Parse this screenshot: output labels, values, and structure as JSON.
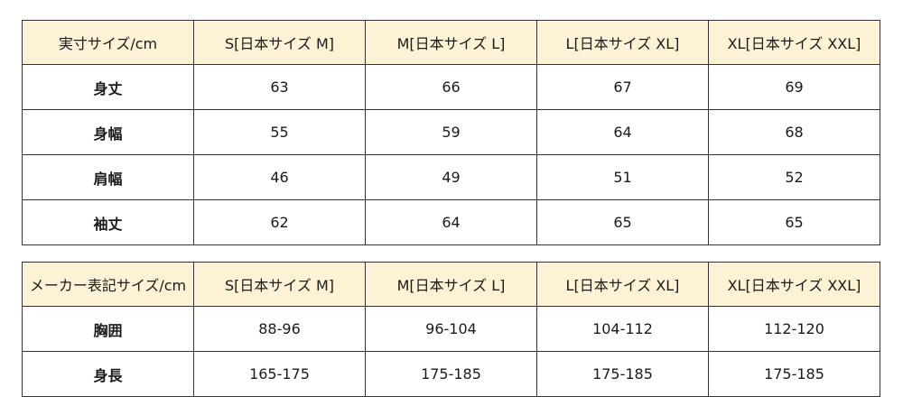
{
  "actual_table": {
    "headers": [
      "実寸サイズ/cm",
      "S[日本サイズ M]",
      "M[日本サイズ L]",
      "L[日本サイズ XL]",
      "XL[日本サイズ XXL]"
    ],
    "rows": [
      [
        "身丈",
        "63",
        "66",
        "67",
        "69"
      ],
      [
        "身幅",
        "55",
        "59",
        "64",
        "68"
      ],
      [
        "肩幅",
        "46",
        "49",
        "51",
        "52"
      ],
      [
        "袖丈",
        "62",
        "64",
        "65",
        "65"
      ]
    ]
  },
  "maker_table": {
    "headers": [
      "メーカー表記サイズ/cm",
      "S[日本サイズ M]",
      "M[日本サイズ L]",
      "L[日本サイズ XL]",
      "XL[日本サイズ XXL]"
    ],
    "rows": [
      [
        "胸囲",
        "88-96",
        "96-104",
        "104-112",
        "112-120"
      ],
      [
        "身長",
        "165-175",
        "175-185",
        "175-185",
        "175-185"
      ]
    ]
  },
  "colors": {
    "header_background": "#fdf2d6",
    "border": "#333333",
    "text": "#1a1a1a"
  }
}
